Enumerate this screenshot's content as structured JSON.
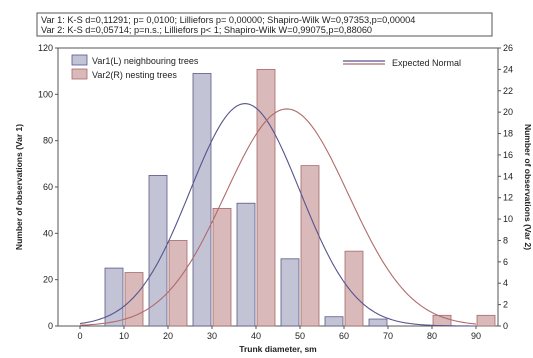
{
  "chart_data": {
    "type": "bar",
    "stats_lines": [
      "Var 1: K-S d=0,11291; p= 0,0100; Lilliefors p= 0,00000; Shapiro-Wilk W=0,97353,p=0,00004",
      "Var 2: K-S d=0,05714; p=n.s.; Lilliefors p< 1; Shapiro-Wilk W=0,99075,p=0,88060"
    ],
    "xlabel": "Trunk diameter, sm",
    "ylabel_left": "Number of observations (Var 1)",
    "ylabel_right": "Number of observations (Var 2)",
    "x_ticks": [
      0,
      10,
      20,
      30,
      40,
      50,
      60,
      70,
      80,
      90
    ],
    "x_range": [
      -5,
      95
    ],
    "y_left_ticks": [
      0,
      20,
      40,
      60,
      80,
      100,
      120
    ],
    "y_left_range": [
      0,
      120
    ],
    "y_right_ticks": [
      0,
      2,
      4,
      6,
      8,
      10,
      12,
      14,
      16,
      18,
      20,
      22,
      24,
      26
    ],
    "y_right_range": [
      0,
      26
    ],
    "series": [
      {
        "name": "Var1(L) neighbouring trees",
        "axis": "left",
        "color": "#c3c3d6",
        "x": [
          10,
          20,
          30,
          40,
          50,
          60,
          70,
          80,
          90
        ],
        "values": [
          25,
          65,
          109,
          53,
          29,
          4,
          3,
          0,
          0
        ]
      },
      {
        "name": "Var2(R) nesting trees",
        "axis": "right",
        "color": "#d9b9b9",
        "x": [
          10,
          20,
          30,
          40,
          50,
          60,
          70,
          80,
          90
        ],
        "values": [
          5,
          8,
          11,
          24,
          15,
          7,
          0,
          1,
          1
        ]
      }
    ],
    "curves": [
      {
        "name": "Expected Normal",
        "axis": "left",
        "color": "#55558f",
        "mean": 37.5,
        "peak": 96,
        "sd": 12.5
      },
      {
        "name": "",
        "axis": "right",
        "color": "#b06b6b",
        "mean": 47.0,
        "peak": 20.3,
        "sd": 14.0
      }
    ],
    "legend": {
      "placement": "top",
      "curve_label": "Expected Normal"
    },
    "grid": false
  }
}
